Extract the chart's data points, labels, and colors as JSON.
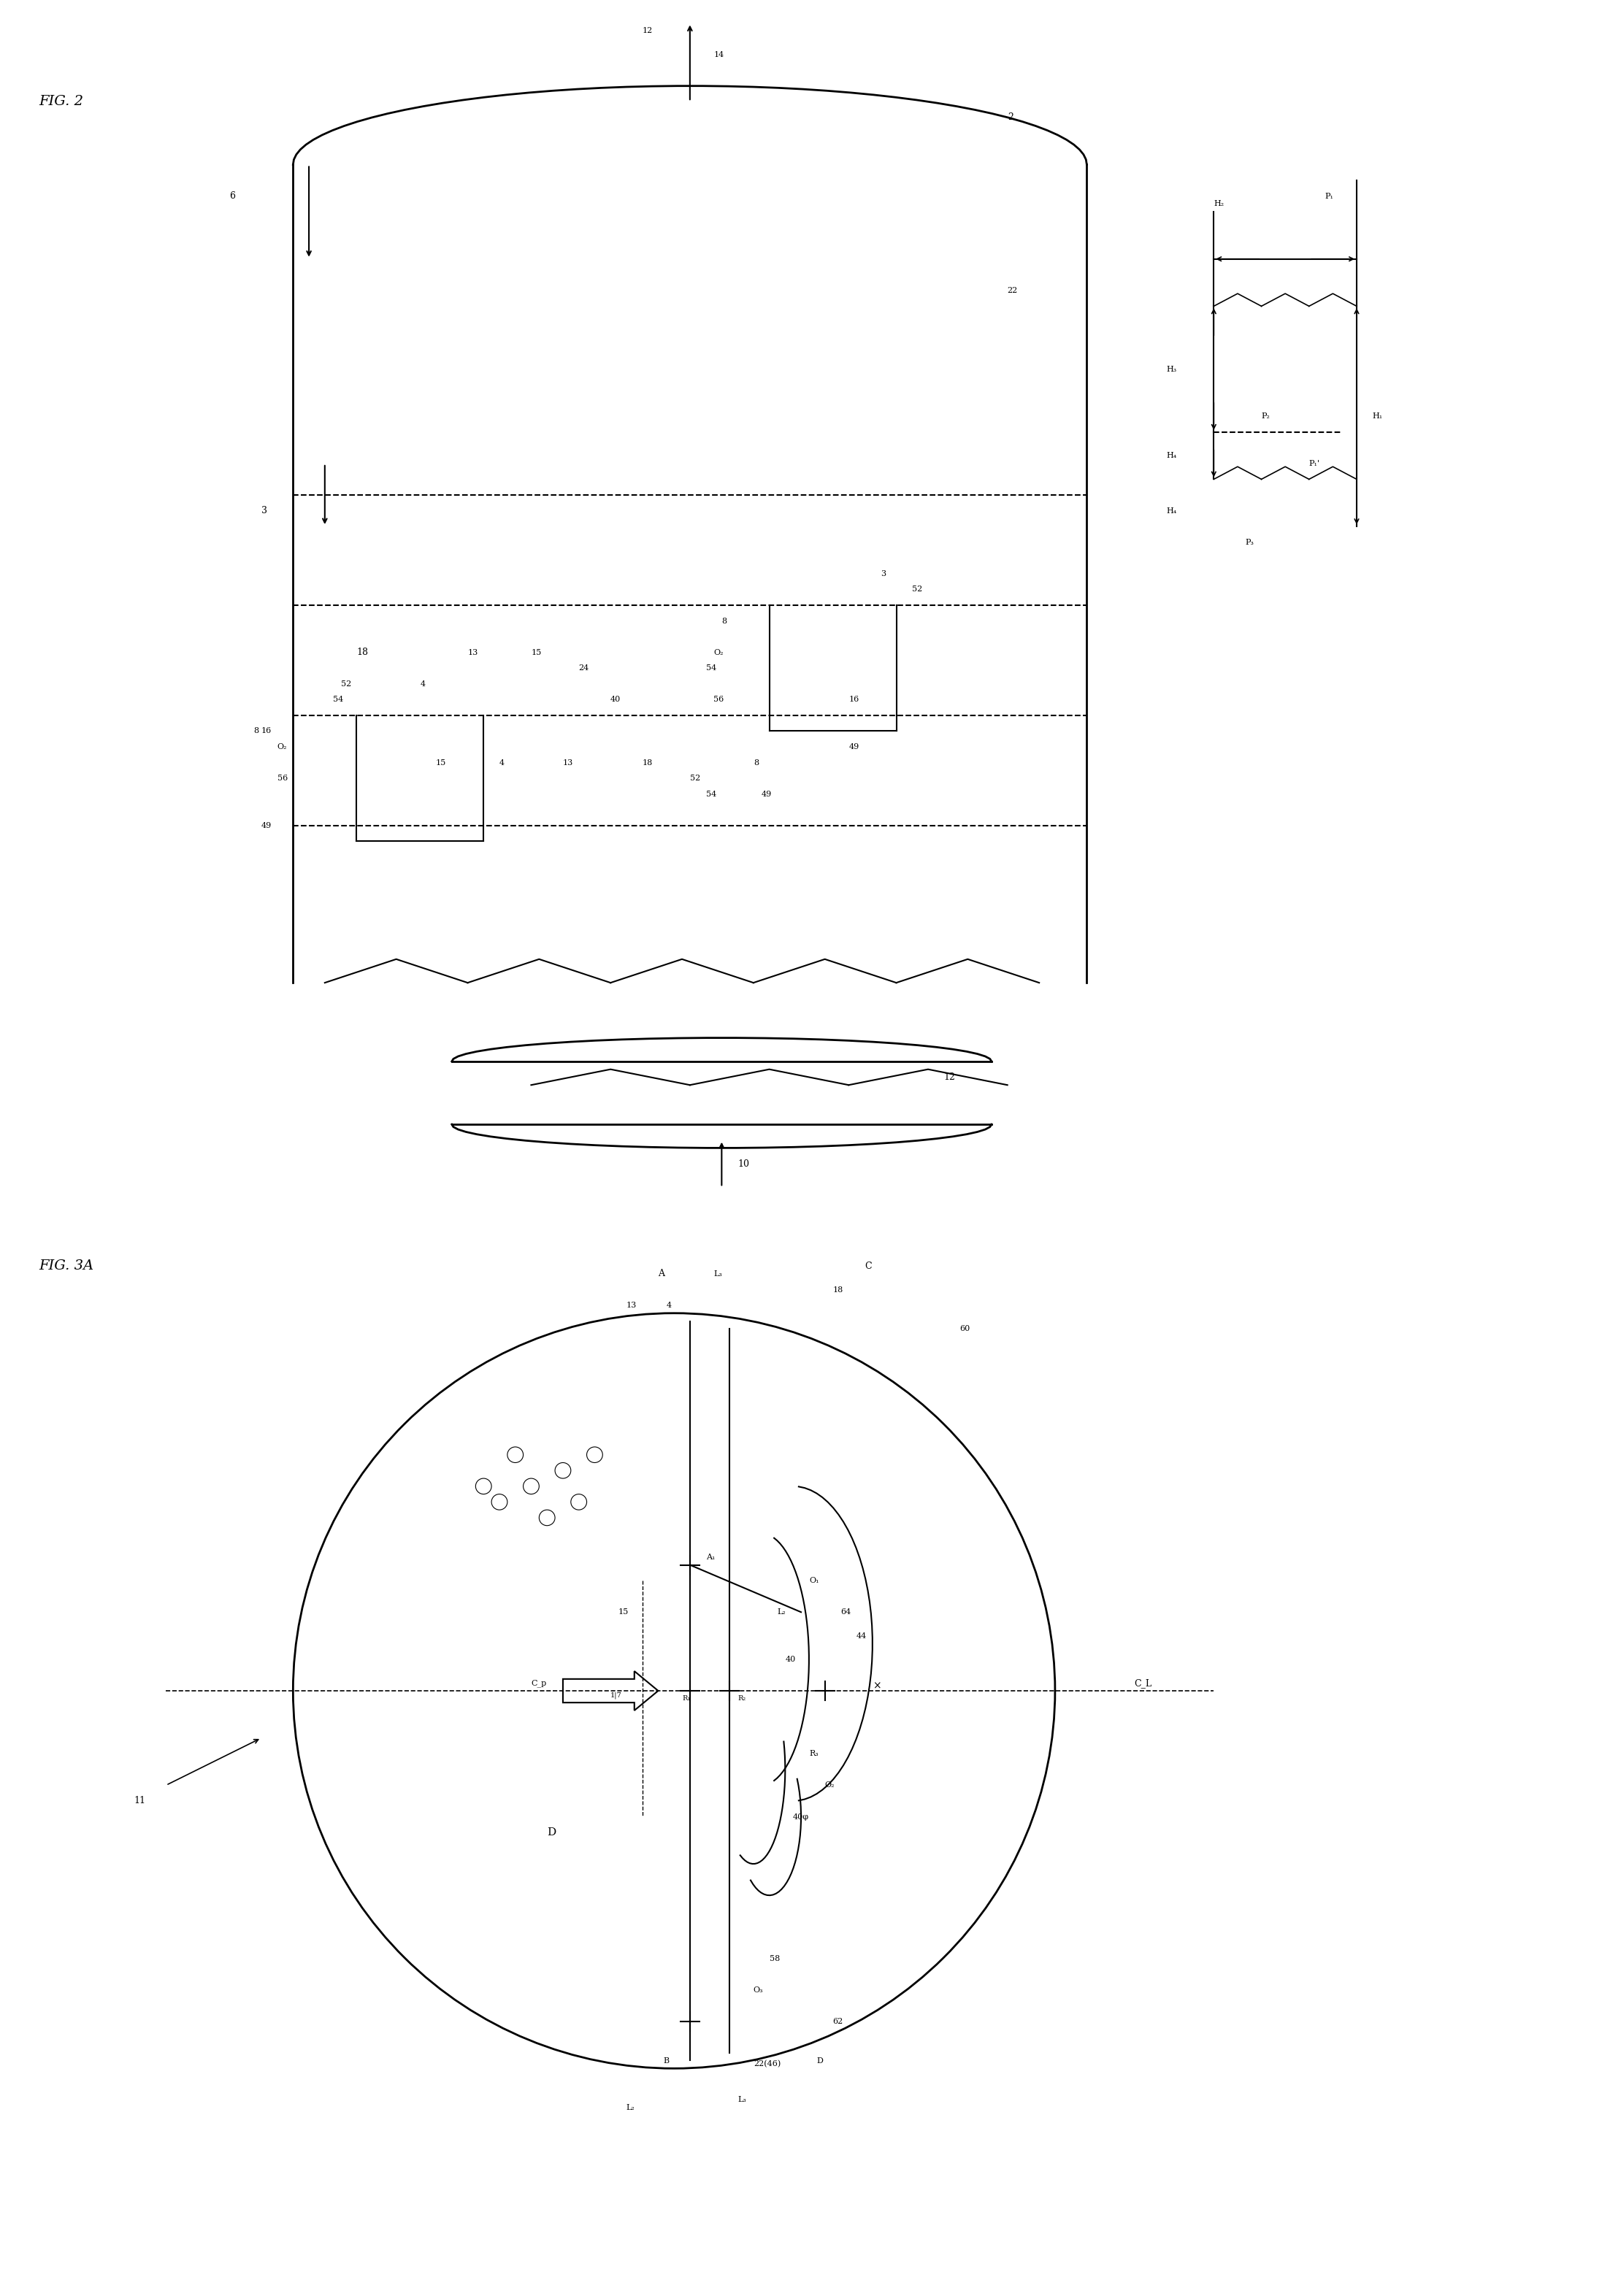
{
  "fig_width": 21.88,
  "fig_height": 31.39,
  "background_color": "#ffffff",
  "line_color": "#000000",
  "line_width": 1.5,
  "fig2_label": "FIG. 2",
  "fig3a_label": "FIG. 3A"
}
